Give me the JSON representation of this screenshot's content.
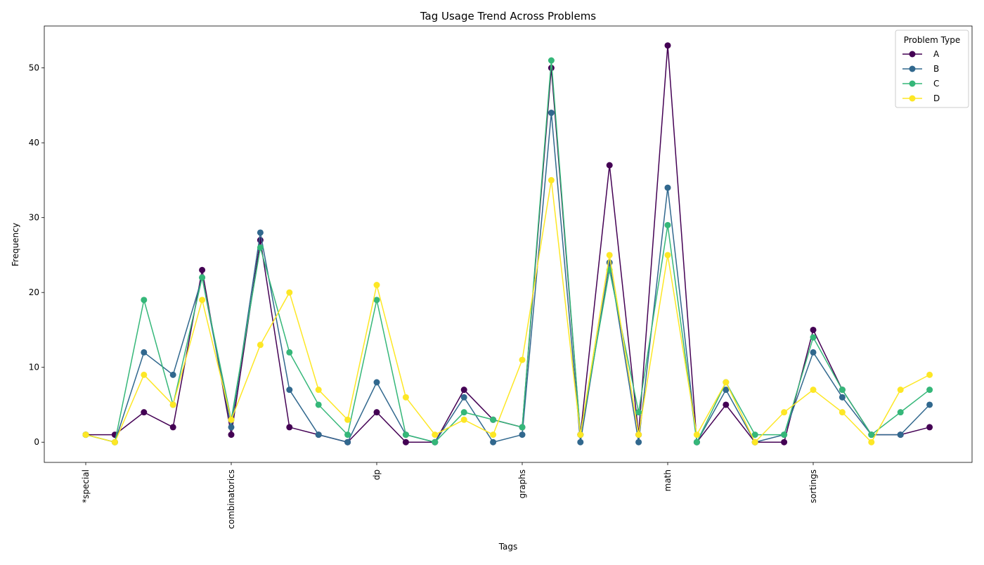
{
  "chart_data": {
    "type": "line",
    "title": "Tag Usage Trend Across Problems",
    "xlabel": "Tags",
    "ylabel": "Frequency",
    "legend_title": "Problem Type",
    "legend_position": "upper right",
    "categories": [
      "*special",
      null,
      null,
      null,
      null,
      "combinatorics",
      null,
      null,
      null,
      null,
      "dp",
      null,
      null,
      null,
      null,
      "graphs",
      null,
      null,
      null,
      null,
      "math",
      null,
      null,
      null,
      null,
      "sortings",
      null,
      null,
      null,
      null
    ],
    "ylim": [
      -2.7,
      55.6
    ],
    "yticks": [
      0,
      10,
      20,
      30,
      40,
      50
    ],
    "series": [
      {
        "name": "A",
        "color": "#440154",
        "values": [
          1,
          1,
          4,
          2,
          23,
          1,
          27,
          2,
          1,
          0,
          4,
          0,
          0,
          7,
          3,
          2,
          50,
          1,
          37,
          1,
          53,
          0,
          5,
          0,
          0,
          15,
          7,
          1,
          1,
          2
        ]
      },
      {
        "name": "B",
        "color": "#31688e",
        "values": [
          1,
          0,
          12,
          9,
          22,
          2,
          28,
          7,
          1,
          0,
          8,
          1,
          0,
          6,
          0,
          1,
          44,
          0,
          24,
          0,
          34,
          0,
          7,
          0,
          1,
          12,
          6,
          1,
          1,
          5
        ]
      },
      {
        "name": "C",
        "color": "#35b779",
        "values": [
          1,
          0,
          19,
          5,
          22,
          3,
          26,
          12,
          5,
          1,
          19,
          1,
          0,
          4,
          3,
          2,
          51,
          1,
          23,
          4,
          29,
          0,
          8,
          1,
          1,
          14,
          7,
          1,
          4,
          7
        ]
      },
      {
        "name": "D",
        "color": "#fde725",
        "values": [
          1,
          0,
          9,
          5,
          19,
          3,
          13,
          20,
          7,
          3,
          21,
          6,
          1,
          3,
          1,
          11,
          35,
          1,
          25,
          1,
          25,
          1,
          8,
          0,
          4,
          7,
          4,
          0,
          7,
          9
        ]
      }
    ]
  }
}
